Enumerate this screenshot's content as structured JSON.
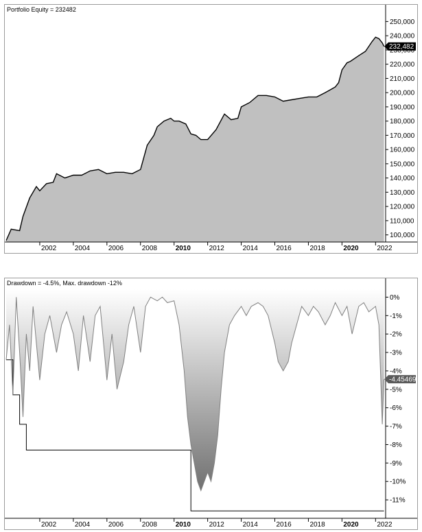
{
  "chart_data": [
    {
      "type": "area",
      "title": "Portfolio Equity = 232482",
      "ylim": [
        95000,
        255000
      ],
      "yticks": [
        100000,
        110000,
        120000,
        130000,
        140000,
        150000,
        160000,
        170000,
        180000,
        190000,
        200000,
        210000,
        220000,
        230000,
        240000,
        250000
      ],
      "ytick_labels": [
        "100,000",
        "110,000",
        "120,000",
        "130,000",
        "140,000",
        "150,000",
        "160,000",
        "170,000",
        "180,000",
        "190,000",
        "200,000",
        "210,000",
        "220,000",
        "230,000",
        "240,000",
        "250,000"
      ],
      "last_value_label": "232,482",
      "last_value": 232482,
      "x": [
        2000.0,
        2000.3,
        2000.8,
        2001.0,
        2001.4,
        2001.8,
        2002.0,
        2002.4,
        2002.8,
        2003.0,
        2003.5,
        2004.0,
        2004.5,
        2005.0,
        2005.5,
        2006.0,
        2006.5,
        2007.0,
        2007.5,
        2008.0,
        2008.4,
        2008.8,
        2009.0,
        2009.4,
        2009.8,
        2010.0,
        2010.3,
        2010.7,
        2011.0,
        2011.3,
        2011.6,
        2012.0,
        2012.5,
        2013.0,
        2013.4,
        2013.8,
        2014.0,
        2014.5,
        2015.0,
        2015.5,
        2016.0,
        2016.5,
        2017.0,
        2017.5,
        2018.0,
        2018.5,
        2019.0,
        2019.3,
        2019.6,
        2019.8,
        2020.0,
        2020.3,
        2020.5,
        2021.0,
        2021.4,
        2021.8,
        2022.0,
        2022.2,
        2022.4,
        2022.5
      ],
      "y": [
        96000,
        104000,
        103000,
        113000,
        126000,
        134000,
        131000,
        136000,
        137000,
        143000,
        140000,
        142000,
        142000,
        145000,
        146000,
        143000,
        144000,
        144000,
        143000,
        146000,
        163000,
        170000,
        176000,
        180000,
        182000,
        180000,
        180000,
        178000,
        171000,
        170000,
        167000,
        167000,
        174000,
        185000,
        181000,
        182000,
        190000,
        193000,
        198000,
        198000,
        197000,
        194000,
        195000,
        196000,
        197000,
        197000,
        200000,
        202000,
        204000,
        207000,
        216000,
        221000,
        222000,
        226000,
        229000,
        236000,
        239000,
        238000,
        235000,
        232482
      ],
      "xticks": [
        2002,
        2004,
        2006,
        2008,
        2010,
        2012,
        2014,
        2016,
        2018,
        2020,
        2022
      ],
      "bold_xticks": [
        2010,
        2020
      ],
      "xlim": [
        2000.0,
        2022.6
      ]
    },
    {
      "type": "area",
      "title": "Drawdown = -4.5%, Max. drawdown -12%",
      "ylim": [
        -12.0,
        0.5
      ],
      "yticks": [
        0,
        -1,
        -2,
        -3,
        -4,
        -5,
        -6,
        -7,
        -8,
        -9,
        -10,
        -11
      ],
      "ytick_labels": [
        "0%",
        "-1%",
        "-2%",
        "-3%",
        "-4%",
        "-5%",
        "-6%",
        "-7%",
        "-8%",
        "-9%",
        "-10%",
        "-11%"
      ],
      "last_value_label": "-4.45469",
      "last_value": -4.45469,
      "x": [
        2000.0,
        2000.2,
        2000.4,
        2000.6,
        2000.8,
        2001.0,
        2001.2,
        2001.4,
        2001.6,
        2001.8,
        2002.0,
        2002.3,
        2002.6,
        2003.0,
        2003.3,
        2003.6,
        2004.0,
        2004.3,
        2004.6,
        2005.0,
        2005.3,
        2005.6,
        2006.0,
        2006.3,
        2006.6,
        2007.0,
        2007.3,
        2007.6,
        2008.0,
        2008.3,
        2008.6,
        2009.0,
        2009.3,
        2009.6,
        2010.0,
        2010.3,
        2010.6,
        2010.8,
        2011.0,
        2011.2,
        2011.4,
        2011.6,
        2011.8,
        2012.0,
        2012.2,
        2012.4,
        2012.6,
        2012.8,
        2013.0,
        2013.3,
        2013.6,
        2014.0,
        2014.3,
        2014.6,
        2015.0,
        2015.3,
        2015.6,
        2016.0,
        2016.2,
        2016.5,
        2016.8,
        2017.0,
        2017.3,
        2017.6,
        2018.0,
        2018.3,
        2018.6,
        2019.0,
        2019.3,
        2019.6,
        2020.0,
        2020.3,
        2020.6,
        2021.0,
        2021.3,
        2021.6,
        2022.0,
        2022.2,
        2022.4,
        2022.5
      ],
      "y": [
        -3.4,
        -1.5,
        -5.3,
        0,
        -3.0,
        -6.5,
        -2.0,
        -4.0,
        -0.5,
        -2.5,
        -4.5,
        -2.0,
        -1.0,
        -3.0,
        -1.5,
        -0.8,
        -2.0,
        -4.0,
        -1.0,
        -3.5,
        -1.0,
        -0.5,
        -4.5,
        -2.0,
        -5.0,
        -3.5,
        -1.5,
        -0.5,
        -3.0,
        -0.5,
        0,
        -0.2,
        0,
        -0.3,
        -0.2,
        -1.5,
        -4.0,
        -6.5,
        -8.0,
        -9.0,
        -10.0,
        -10.5,
        -10.0,
        -9.5,
        -10.0,
        -9.0,
        -7.5,
        -5.0,
        -3.0,
        -1.5,
        -1.0,
        -0.5,
        -1.0,
        -0.5,
        -0.3,
        -0.5,
        -1.0,
        -2.5,
        -3.5,
        -4.0,
        -3.5,
        -2.5,
        -1.5,
        -0.5,
        -1.0,
        -0.5,
        -0.8,
        -1.5,
        -1.0,
        -0.3,
        -1.0,
        -0.5,
        -2.0,
        -0.5,
        -0.3,
        -0.8,
        -0.5,
        -1.5,
        -6.9,
        -4.45469
      ],
      "max_drawdown_y": [
        -3.4,
        -3.4,
        -5.3,
        -5.3,
        -6.9,
        -6.9,
        -8.3,
        -8.3,
        -8.3,
        -8.3,
        -8.3,
        -8.3,
        -8.3,
        -8.3,
        -8.3,
        -8.3,
        -8.3,
        -8.3,
        -8.3,
        -8.3,
        -8.3,
        -8.3,
        -8.3,
        -8.3,
        -8.3,
        -8.3,
        -8.3,
        -8.3,
        -8.3,
        -8.3,
        -8.3,
        -8.3,
        -8.3,
        -8.3,
        -8.3,
        -8.3,
        -8.3,
        -8.3,
        -11.6,
        -11.6,
        -11.6,
        -11.6,
        -11.6,
        -11.6,
        -11.6,
        -11.6,
        -11.6,
        -11.6,
        -11.6,
        -11.6,
        -11.6,
        -11.6,
        -11.6,
        -11.6,
        -11.6,
        -11.6,
        -11.6,
        -11.6,
        -11.6,
        -11.6,
        -11.6,
        -11.6,
        -11.6,
        -11.6,
        -11.6,
        -11.6,
        -11.6,
        -11.6,
        -11.6,
        -11.6,
        -11.6,
        -11.6,
        -11.6,
        -11.6,
        -11.6,
        -11.6,
        -11.6,
        -11.6,
        -11.6,
        -11.6
      ],
      "xticks": [
        2002,
        2004,
        2006,
        2008,
        2010,
        2012,
        2014,
        2016,
        2018,
        2020,
        2022
      ],
      "bold_xticks": [
        2010,
        2020
      ],
      "xlim": [
        2000.0,
        2022.6
      ]
    }
  ],
  "colors": {
    "equity_fill": "#c0c0c0",
    "equity_line": "#000000",
    "drawdown_line": "#808080",
    "label_bg": "#000000",
    "dd_label_bg": "#5a5a5a"
  }
}
